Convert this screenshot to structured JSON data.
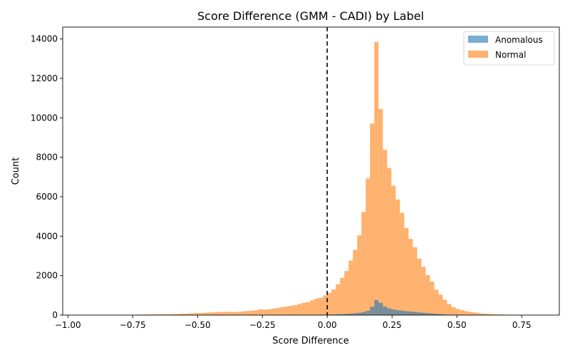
{
  "chart_data": {
    "type": "histogram",
    "title": "Score Difference (GMM - CADI) by Label",
    "xlabel": "Score Difference",
    "ylabel": "Count",
    "xlim": [
      -1.02,
      0.895
    ],
    "ylim": [
      0,
      14600
    ],
    "xticks": [
      -1.0,
      -0.75,
      -0.5,
      -0.25,
      0.0,
      0.25,
      0.5,
      0.75
    ],
    "xtick_labels": [
      "−1.00",
      "−0.75",
      "−0.50",
      "−0.25",
      "0.00",
      "0.25",
      "0.50",
      "0.75"
    ],
    "yticks": [
      0,
      2000,
      4000,
      6000,
      8000,
      10000,
      12000,
      14000
    ],
    "ytick_labels": [
      "0",
      "2000",
      "4000",
      "6000",
      "8000",
      "10000",
      "12000",
      "14000"
    ],
    "bin_width": 0.0165,
    "reference_line": {
      "x": 0.0,
      "style": "dashed",
      "color": "#000000"
    },
    "legend": {
      "location": "upper right",
      "entries": [
        {
          "label": "Anomalous",
          "color": "#1f77b4"
        },
        {
          "label": "Normal",
          "color": "#ff7f0e"
        }
      ]
    },
    "series": [
      {
        "name": "Normal",
        "color": "#ff7f0e",
        "alpha": 0.6,
        "bin_start": -0.825,
        "counts": [
          10,
          10,
          15,
          15,
          20,
          20,
          25,
          25,
          35,
          35,
          40,
          40,
          45,
          50,
          55,
          60,
          70,
          80,
          90,
          100,
          110,
          120,
          130,
          140,
          150,
          160,
          170,
          160,
          150,
          170,
          190,
          210,
          230,
          250,
          290,
          280,
          300,
          330,
          360,
          400,
          440,
          470,
          500,
          560,
          620,
          660,
          750,
          830,
          880,
          1000,
          1130,
          1300,
          1560,
          1880,
          2230,
          2760,
          3310,
          4040,
          5230,
          6930,
          9710,
          13840,
          10450,
          8380,
          7460,
          6560,
          5860,
          5180,
          4420,
          3860,
          3440,
          2860,
          2450,
          2030,
          1700,
          1290,
          1040,
          780,
          560,
          400,
          320,
          250,
          200,
          160,
          130,
          100,
          80,
          65,
          50,
          40,
          30,
          25,
          20,
          15,
          10,
          10,
          8,
          6,
          4,
          3,
          2,
          2
        ]
      },
      {
        "name": "Anomalous",
        "color": "#1f77b4",
        "alpha": 0.6,
        "bin_start": -0.825,
        "counts": [
          0,
          0,
          0,
          0,
          0,
          0,
          0,
          0,
          0,
          0,
          0,
          0,
          0,
          0,
          0,
          0,
          0,
          0,
          0,
          0,
          0,
          0,
          0,
          0,
          0,
          0,
          0,
          0,
          0,
          0,
          0,
          0,
          0,
          0,
          0,
          0,
          0,
          0,
          0,
          0,
          0,
          0,
          0,
          0,
          5,
          5,
          10,
          10,
          15,
          20,
          25,
          30,
          40,
          50,
          60,
          70,
          90,
          120,
          160,
          220,
          420,
          760,
          620,
          430,
          340,
          290,
          250,
          230,
          200,
          180,
          160,
          140,
          120,
          100,
          80,
          60,
          45,
          30,
          20,
          15,
          10,
          8,
          5,
          5,
          3,
          2,
          2,
          1,
          1,
          0,
          0,
          0,
          0,
          0,
          0,
          0,
          0,
          0,
          0,
          0
        ]
      }
    ]
  }
}
